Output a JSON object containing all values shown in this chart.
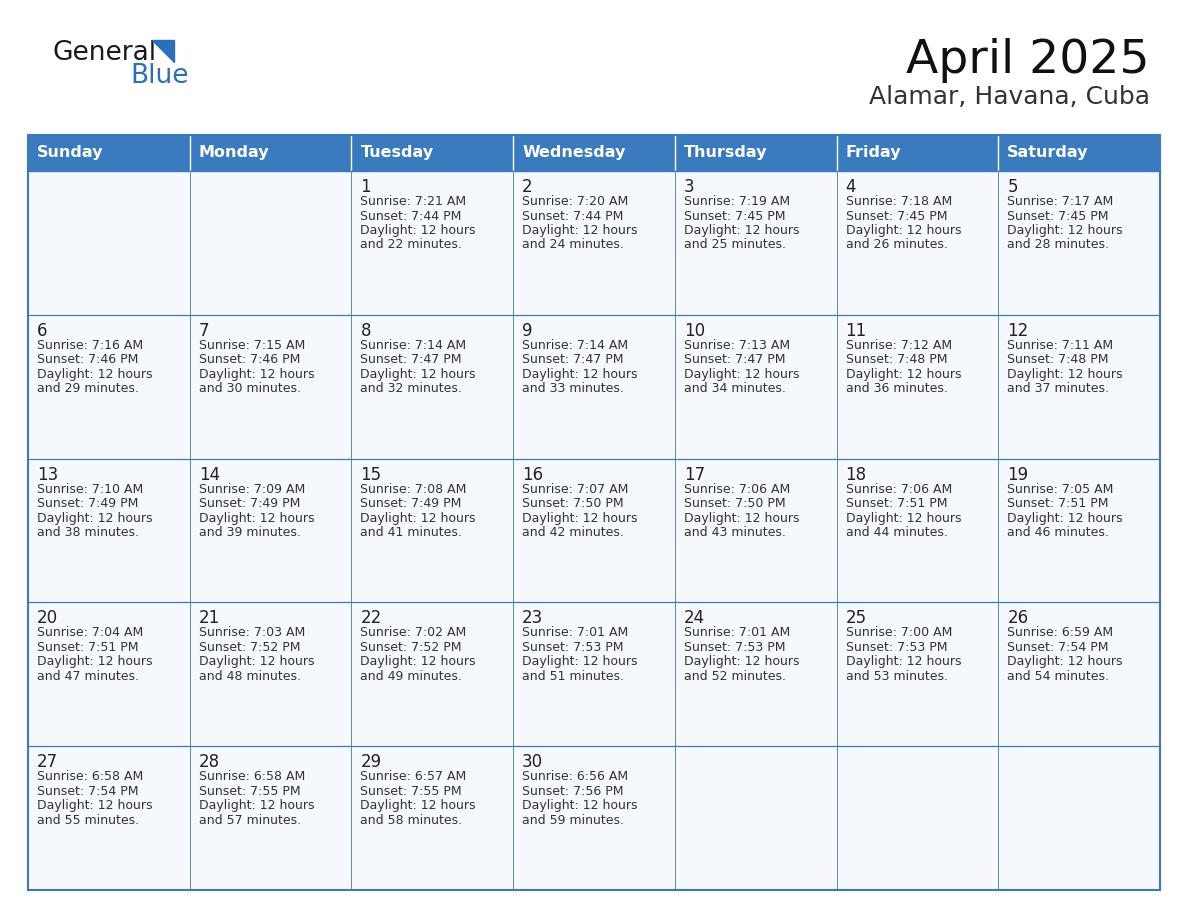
{
  "title": "April 2025",
  "subtitle": "Alamar, Havana, Cuba",
  "header_bg": "#3a7abf",
  "header_text_color": "#ffffff",
  "cell_bg": "#f5f8fc",
  "border_color": "#3a7abf",
  "text_color": "#333333",
  "day_number_color": "#222222",
  "day_headers": [
    "Sunday",
    "Monday",
    "Tuesday",
    "Wednesday",
    "Thursday",
    "Friday",
    "Saturday"
  ],
  "calendar_data": [
    [
      {
        "day": "",
        "info": ""
      },
      {
        "day": "",
        "info": ""
      },
      {
        "day": "1",
        "info": "Sunrise: 7:21 AM\nSunset: 7:44 PM\nDaylight: 12 hours\nand 22 minutes."
      },
      {
        "day": "2",
        "info": "Sunrise: 7:20 AM\nSunset: 7:44 PM\nDaylight: 12 hours\nand 24 minutes."
      },
      {
        "day": "3",
        "info": "Sunrise: 7:19 AM\nSunset: 7:45 PM\nDaylight: 12 hours\nand 25 minutes."
      },
      {
        "day": "4",
        "info": "Sunrise: 7:18 AM\nSunset: 7:45 PM\nDaylight: 12 hours\nand 26 minutes."
      },
      {
        "day": "5",
        "info": "Sunrise: 7:17 AM\nSunset: 7:45 PM\nDaylight: 12 hours\nand 28 minutes."
      }
    ],
    [
      {
        "day": "6",
        "info": "Sunrise: 7:16 AM\nSunset: 7:46 PM\nDaylight: 12 hours\nand 29 minutes."
      },
      {
        "day": "7",
        "info": "Sunrise: 7:15 AM\nSunset: 7:46 PM\nDaylight: 12 hours\nand 30 minutes."
      },
      {
        "day": "8",
        "info": "Sunrise: 7:14 AM\nSunset: 7:47 PM\nDaylight: 12 hours\nand 32 minutes."
      },
      {
        "day": "9",
        "info": "Sunrise: 7:14 AM\nSunset: 7:47 PM\nDaylight: 12 hours\nand 33 minutes."
      },
      {
        "day": "10",
        "info": "Sunrise: 7:13 AM\nSunset: 7:47 PM\nDaylight: 12 hours\nand 34 minutes."
      },
      {
        "day": "11",
        "info": "Sunrise: 7:12 AM\nSunset: 7:48 PM\nDaylight: 12 hours\nand 36 minutes."
      },
      {
        "day": "12",
        "info": "Sunrise: 7:11 AM\nSunset: 7:48 PM\nDaylight: 12 hours\nand 37 minutes."
      }
    ],
    [
      {
        "day": "13",
        "info": "Sunrise: 7:10 AM\nSunset: 7:49 PM\nDaylight: 12 hours\nand 38 minutes."
      },
      {
        "day": "14",
        "info": "Sunrise: 7:09 AM\nSunset: 7:49 PM\nDaylight: 12 hours\nand 39 minutes."
      },
      {
        "day": "15",
        "info": "Sunrise: 7:08 AM\nSunset: 7:49 PM\nDaylight: 12 hours\nand 41 minutes."
      },
      {
        "day": "16",
        "info": "Sunrise: 7:07 AM\nSunset: 7:50 PM\nDaylight: 12 hours\nand 42 minutes."
      },
      {
        "day": "17",
        "info": "Sunrise: 7:06 AM\nSunset: 7:50 PM\nDaylight: 12 hours\nand 43 minutes."
      },
      {
        "day": "18",
        "info": "Sunrise: 7:06 AM\nSunset: 7:51 PM\nDaylight: 12 hours\nand 44 minutes."
      },
      {
        "day": "19",
        "info": "Sunrise: 7:05 AM\nSunset: 7:51 PM\nDaylight: 12 hours\nand 46 minutes."
      }
    ],
    [
      {
        "day": "20",
        "info": "Sunrise: 7:04 AM\nSunset: 7:51 PM\nDaylight: 12 hours\nand 47 minutes."
      },
      {
        "day": "21",
        "info": "Sunrise: 7:03 AM\nSunset: 7:52 PM\nDaylight: 12 hours\nand 48 minutes."
      },
      {
        "day": "22",
        "info": "Sunrise: 7:02 AM\nSunset: 7:52 PM\nDaylight: 12 hours\nand 49 minutes."
      },
      {
        "day": "23",
        "info": "Sunrise: 7:01 AM\nSunset: 7:53 PM\nDaylight: 12 hours\nand 51 minutes."
      },
      {
        "day": "24",
        "info": "Sunrise: 7:01 AM\nSunset: 7:53 PM\nDaylight: 12 hours\nand 52 minutes."
      },
      {
        "day": "25",
        "info": "Sunrise: 7:00 AM\nSunset: 7:53 PM\nDaylight: 12 hours\nand 53 minutes."
      },
      {
        "day": "26",
        "info": "Sunrise: 6:59 AM\nSunset: 7:54 PM\nDaylight: 12 hours\nand 54 minutes."
      }
    ],
    [
      {
        "day": "27",
        "info": "Sunrise: 6:58 AM\nSunset: 7:54 PM\nDaylight: 12 hours\nand 55 minutes."
      },
      {
        "day": "28",
        "info": "Sunrise: 6:58 AM\nSunset: 7:55 PM\nDaylight: 12 hours\nand 57 minutes."
      },
      {
        "day": "29",
        "info": "Sunrise: 6:57 AM\nSunset: 7:55 PM\nDaylight: 12 hours\nand 58 minutes."
      },
      {
        "day": "30",
        "info": "Sunrise: 6:56 AM\nSunset: 7:56 PM\nDaylight: 12 hours\nand 59 minutes."
      },
      {
        "day": "",
        "info": ""
      },
      {
        "day": "",
        "info": ""
      },
      {
        "day": "",
        "info": ""
      }
    ]
  ],
  "logo_text1": "General",
  "logo_text2": "Blue",
  "logo_text1_color": "#1a1a1a",
  "logo_text2_color": "#2a6fba",
  "logo_triangle_color": "#2a6fba",
  "title_color": "#111111",
  "subtitle_color": "#333333",
  "figwidth": 11.88,
  "figheight": 9.18,
  "dpi": 100
}
